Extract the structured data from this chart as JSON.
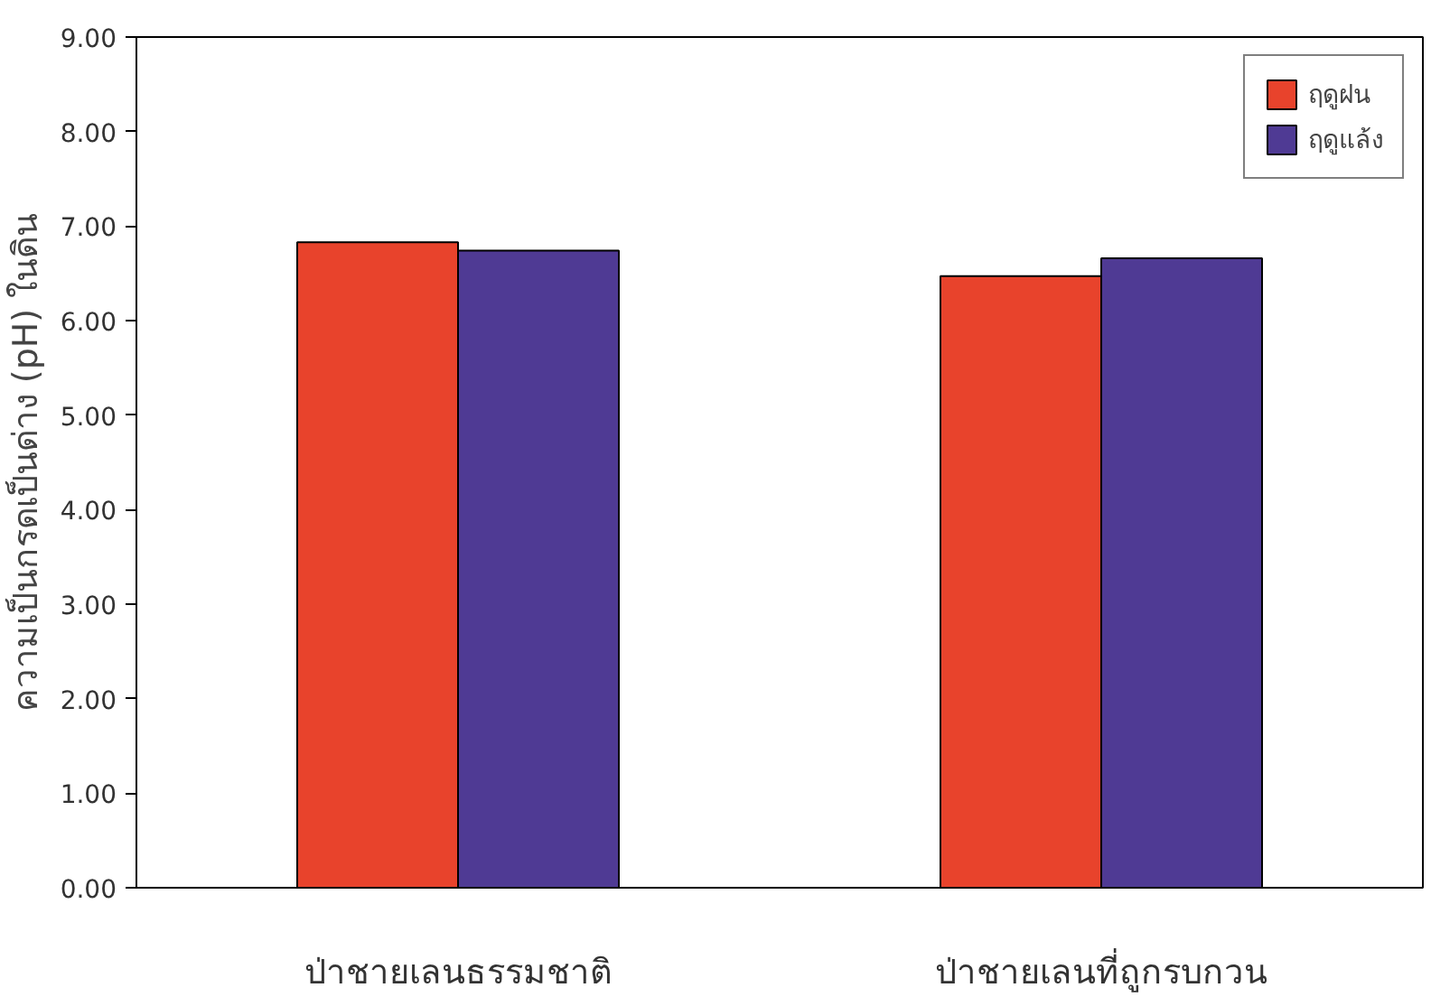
{
  "chart_data": {
    "type": "bar",
    "ylabel": "ความเป็นกรดเป็นด่าง (pH) ในดิน",
    "categories": [
      "ป่าชายเลนธรรมชาติ",
      "ป่าชายเลนที่ถูกรบกวน"
    ],
    "series": [
      {
        "name": "ฤดูฝน",
        "color": "#e8432c",
        "values": [
          6.83,
          6.47
        ]
      },
      {
        "name": "ฤดูแล้ง",
        "color": "#4f3a94",
        "values": [
          6.74,
          6.66
        ]
      }
    ],
    "ylim": [
      0,
      9
    ],
    "yticks": [
      {
        "value": 0,
        "label": "0.00"
      },
      {
        "value": 1,
        "label": "1.00"
      },
      {
        "value": 2,
        "label": "2.00"
      },
      {
        "value": 3,
        "label": "3.00"
      },
      {
        "value": 4,
        "label": "4.00"
      },
      {
        "value": 5,
        "label": "5.00"
      },
      {
        "value": 6,
        "label": "6.00"
      },
      {
        "value": 7,
        "label": "7.00"
      },
      {
        "value": 8,
        "label": "8.00"
      },
      {
        "value": 9,
        "label": "9.00"
      }
    ],
    "grid": false,
    "legend": "top right"
  }
}
